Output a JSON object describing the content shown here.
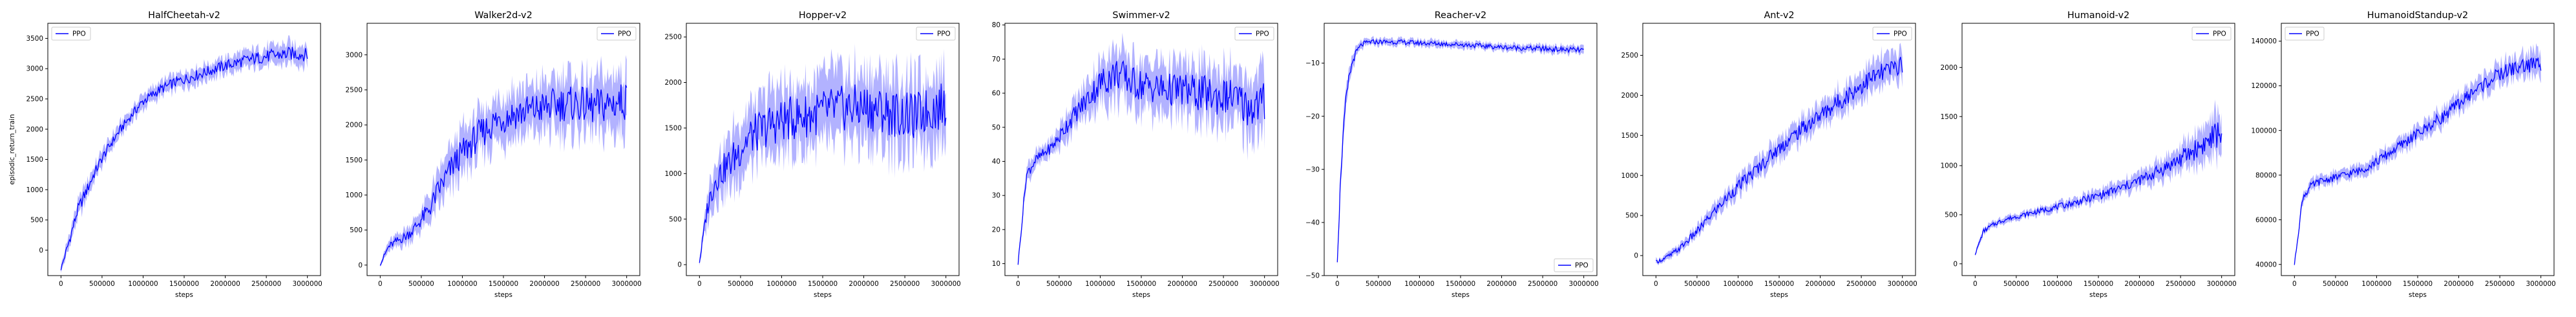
{
  "colors": {
    "line": "#0000ff",
    "band": "#0000ff",
    "axes": "#000000",
    "background": "#ffffff"
  },
  "chart_data": [
    {
      "type": "line",
      "title": "HalfCheetah-v2",
      "xlabel": "steps",
      "ylabel": "episodic_return_train",
      "xlim": [
        -160000,
        3160000
      ],
      "ylim": [
        -420,
        3750
      ],
      "xticks": [
        0,
        500000,
        1000000,
        1500000,
        2000000,
        2500000,
        3000000
      ],
      "xtick_labels": [
        "0",
        "500000",
        "1000000",
        "1500000",
        "2000000",
        "2500000",
        "3000000"
      ],
      "yticks": [
        0,
        500,
        1000,
        1500,
        2000,
        2500,
        3000,
        3500
      ],
      "ytick_labels": [
        "0",
        "500",
        "1000",
        "1500",
        "2000",
        "2500",
        "3000",
        "3500"
      ],
      "legend_position": "upper-left",
      "series": [
        {
          "name": "PPO",
          "x": [
            0,
            100000,
            200000,
            300000,
            400000,
            500000,
            600000,
            700000,
            800000,
            900000,
            1000000,
            1200000,
            1400000,
            1600000,
            1800000,
            2000000,
            2200000,
            2400000,
            2600000,
            2800000,
            3000000
          ],
          "y": [
            -310,
            150,
            650,
            950,
            1250,
            1520,
            1740,
            1950,
            2130,
            2300,
            2460,
            2650,
            2780,
            2870,
            2960,
            3050,
            3120,
            3180,
            3220,
            3250,
            3230
          ],
          "band": [
            60,
            150,
            180,
            180,
            160,
            150,
            140,
            140,
            140,
            140,
            150,
            150,
            160,
            160,
            160,
            170,
            180,
            190,
            200,
            210,
            200
          ]
        }
      ]
    },
    {
      "type": "line",
      "title": "Walker2d-v2",
      "xlabel": "steps",
      "xlim": [
        -160000,
        3160000
      ],
      "ylim": [
        -150,
        3450
      ],
      "xticks": [
        0,
        500000,
        1000000,
        1500000,
        2000000,
        2500000,
        3000000
      ],
      "xtick_labels": [
        "0",
        "500000",
        "1000000",
        "1500000",
        "2000000",
        "2500000",
        "3000000"
      ],
      "yticks": [
        0,
        500,
        1000,
        1500,
        2000,
        2500,
        3000
      ],
      "ytick_labels": [
        "0",
        "500",
        "1000",
        "1500",
        "2000",
        "2500",
        "3000"
      ],
      "legend_position": "upper-right",
      "series": [
        {
          "name": "PPO",
          "x": [
            0,
            100000,
            200000,
            300000,
            400000,
            500000,
            600000,
            700000,
            800000,
            900000,
            1000000,
            1200000,
            1400000,
            1600000,
            1800000,
            2000000,
            2200000,
            2400000,
            2600000,
            2800000,
            3000000
          ],
          "y": [
            10,
            260,
            340,
            400,
            500,
            650,
            800,
            1050,
            1250,
            1450,
            1600,
            1850,
            2050,
            2150,
            2200,
            2250,
            2300,
            2300,
            2250,
            2300,
            2350
          ],
          "band": [
            30,
            90,
            110,
            130,
            160,
            200,
            250,
            300,
            330,
            360,
            380,
            400,
            420,
            430,
            440,
            450,
            460,
            470,
            480,
            490,
            500
          ]
        }
      ]
    },
    {
      "type": "line",
      "title": "Hopper-v2",
      "xlabel": "steps",
      "xlim": [
        -160000,
        3160000
      ],
      "ylim": [
        -120,
        2650
      ],
      "xticks": [
        0,
        500000,
        1000000,
        1500000,
        2000000,
        2500000,
        3000000
      ],
      "xtick_labels": [
        "0",
        "500000",
        "1000000",
        "1500000",
        "2000000",
        "2500000",
        "3000000"
      ],
      "yticks": [
        0,
        500,
        1000,
        1500,
        2000,
        2500
      ],
      "ytick_labels": [
        "0",
        "500",
        "1000",
        "1500",
        "2000",
        "2500"
      ],
      "legend_position": "upper-right",
      "series": [
        {
          "name": "PPO",
          "x": [
            0,
            100000,
            200000,
            300000,
            400000,
            500000,
            600000,
            700000,
            800000,
            900000,
            1000000,
            1200000,
            1400000,
            1600000,
            1800000,
            2000000,
            2200000,
            2400000,
            2600000,
            2800000,
            3000000
          ],
          "y": [
            30,
            650,
            950,
            1050,
            1150,
            1280,
            1400,
            1450,
            1500,
            1550,
            1580,
            1620,
            1650,
            1700,
            1720,
            1730,
            1700,
            1650,
            1620,
            1700,
            1750
          ],
          "band": [
            40,
            200,
            280,
            320,
            360,
            380,
            400,
            400,
            420,
            430,
            440,
            450,
            450,
            460,
            460,
            470,
            470,
            470,
            470,
            470,
            480
          ]
        }
      ]
    },
    {
      "type": "line",
      "title": "Swimmer-v2",
      "xlabel": "steps",
      "xlim": [
        -160000,
        3160000
      ],
      "ylim": [
        6.5,
        80.5
      ],
      "xticks": [
        0,
        500000,
        1000000,
        1500000,
        2000000,
        2500000,
        3000000
      ],
      "xtick_labels": [
        "0",
        "500000",
        "1000000",
        "1500000",
        "2000000",
        "2500000",
        "3000000"
      ],
      "yticks": [
        10,
        20,
        30,
        40,
        50,
        60,
        70,
        80
      ],
      "ytick_labels": [
        "10",
        "20",
        "30",
        "40",
        "50",
        "60",
        "70",
        "80"
      ],
      "legend_position": "upper-right",
      "series": [
        {
          "name": "PPO",
          "x": [
            0,
            100000,
            200000,
            300000,
            400000,
            500000,
            600000,
            700000,
            800000,
            900000,
            1000000,
            1200000,
            1400000,
            1600000,
            1800000,
            2000000,
            2200000,
            2400000,
            2600000,
            2800000,
            3000000
          ],
          "y": [
            10,
            36,
            40,
            42,
            44,
            47,
            51,
            54,
            57,
            60,
            63,
            66,
            63,
            62,
            61,
            61,
            60,
            59,
            59,
            56,
            57
          ],
          "band": [
            1,
            3,
            3,
            3,
            3,
            4,
            5,
            5,
            6,
            7,
            8,
            9,
            9,
            9,
            9,
            9,
            10,
            10,
            10,
            11,
            12
          ]
        }
      ]
    },
    {
      "type": "line",
      "title": "Reacher-v2",
      "xlabel": "steps",
      "xlim": [
        -160000,
        3160000
      ],
      "ylim": [
        -50,
        -2.5
      ],
      "xticks": [
        0,
        500000,
        1000000,
        1500000,
        2000000,
        2500000,
        3000000
      ],
      "xtick_labels": [
        "0",
        "500000",
        "1000000",
        "1500000",
        "2000000",
        "2500000",
        "3000000"
      ],
      "yticks": [
        -50,
        -40,
        -30,
        -20,
        -10
      ],
      "ytick_labels": [
        "−50",
        "−40",
        "−30",
        "−20",
        "−10"
      ],
      "legend_position": "lower-right",
      "series": [
        {
          "name": "PPO",
          "x": [
            0,
            50000,
            100000,
            150000,
            200000,
            250000,
            300000,
            400000,
            500000,
            700000,
            1000000,
            1500000,
            2000000,
            2500000,
            3000000
          ],
          "y": [
            -47,
            -28,
            -18,
            -12,
            -9,
            -7.5,
            -6.5,
            -6,
            -6,
            -6,
            -6.2,
            -6.5,
            -7,
            -7.3,
            -7.6
          ],
          "band": [
            1,
            3,
            2.5,
            2,
            1.5,
            1.2,
            1,
            0.8,
            0.8,
            0.8,
            0.8,
            0.8,
            0.8,
            0.9,
            1
          ]
        }
      ]
    },
    {
      "type": "line",
      "title": "Ant-v2",
      "xlabel": "steps",
      "xlim": [
        -160000,
        3160000
      ],
      "ylim": [
        -250,
        2900
      ],
      "xticks": [
        0,
        500000,
        1000000,
        1500000,
        2000000,
        2500000,
        3000000
      ],
      "xtick_labels": [
        "0",
        "500000",
        "1000000",
        "1500000",
        "2000000",
        "2500000",
        "3000000"
      ],
      "yticks": [
        0,
        500,
        1000,
        1500,
        2000,
        2500
      ],
      "ytick_labels": [
        "0",
        "500",
        "1000",
        "1500",
        "2000",
        "2500"
      ],
      "legend_position": "upper-right",
      "series": [
        {
          "name": "PPO",
          "x": [
            0,
            100000,
            200000,
            300000,
            400000,
            500000,
            600000,
            700000,
            800000,
            900000,
            1000000,
            1200000,
            1400000,
            1600000,
            1800000,
            2000000,
            2200000,
            2400000,
            2600000,
            2800000,
            3000000
          ],
          "y": [
            -80,
            -40,
            20,
            100,
            200,
            300,
            420,
            540,
            650,
            760,
            860,
            1050,
            1250,
            1430,
            1600,
            1750,
            1900,
            2050,
            2200,
            2300,
            2400
          ],
          "band": [
            40,
            50,
            60,
            70,
            80,
            90,
            100,
            110,
            120,
            130,
            140,
            150,
            160,
            170,
            180,
            190,
            200,
            210,
            220,
            230,
            240
          ]
        }
      ]
    },
    {
      "type": "line",
      "title": "Humanoid-v2",
      "xlabel": "steps",
      "xlim": [
        -160000,
        3160000
      ],
      "ylim": [
        -120,
        2450
      ],
      "xticks": [
        0,
        500000,
        1000000,
        1500000,
        2000000,
        2500000,
        3000000
      ],
      "xtick_labels": [
        "0",
        "500000",
        "1000000",
        "1500000",
        "2000000",
        "2500000",
        "3000000"
      ],
      "yticks": [
        0,
        500,
        1000,
        1500,
        2000
      ],
      "ytick_labels": [
        "0",
        "500",
        "1000",
        "1500",
        "2000"
      ],
      "legend_position": "upper-right",
      "series": [
        {
          "name": "PPO",
          "x": [
            0,
            100000,
            200000,
            300000,
            400000,
            500000,
            600000,
            700000,
            800000,
            900000,
            1000000,
            1200000,
            1400000,
            1600000,
            1800000,
            2000000,
            2200000,
            2400000,
            2600000,
            2800000,
            3000000
          ],
          "y": [
            100,
            330,
            390,
            430,
            460,
            480,
            500,
            520,
            540,
            560,
            580,
            620,
            670,
            720,
            780,
            850,
            930,
            1020,
            1120,
            1230,
            1350
          ],
          "band": [
            20,
            40,
            40,
            40,
            40,
            40,
            45,
            45,
            50,
            50,
            55,
            60,
            70,
            80,
            90,
            100,
            120,
            150,
            180,
            220,
            280
          ]
        }
      ]
    },
    {
      "type": "line",
      "title": "HumanoidStandup-v2",
      "xlabel": "steps",
      "xlim": [
        -160000,
        3160000
      ],
      "ylim": [
        35000,
        148000
      ],
      "xticks": [
        0,
        500000,
        1000000,
        1500000,
        2000000,
        2500000,
        3000000
      ],
      "xtick_labels": [
        "0",
        "500000",
        "1000000",
        "1500000",
        "2000000",
        "2500000",
        "3000000"
      ],
      "yticks": [
        40000,
        60000,
        80000,
        100000,
        120000,
        140000
      ],
      "ytick_labels": [
        "40000",
        "60000",
        "80000",
        "100000",
        "120000",
        "140000"
      ],
      "legend_position": "upper-left",
      "series": [
        {
          "name": "PPO",
          "x": [
            0,
            100000,
            200000,
            300000,
            400000,
            500000,
            600000,
            700000,
            800000,
            900000,
            1000000,
            1200000,
            1400000,
            1600000,
            1800000,
            2000000,
            2200000,
            2400000,
            2600000,
            2800000,
            3000000
          ],
          "y": [
            40000,
            70000,
            75000,
            77000,
            78000,
            79000,
            80000,
            81000,
            82000,
            84000,
            86000,
            91000,
            96000,
            101000,
            106000,
            112000,
            118000,
            123000,
            127000,
            129000,
            130000
          ],
          "band": [
            1000,
            3000,
            3000,
            3000,
            3000,
            3000,
            3000,
            3500,
            3500,
            3500,
            4000,
            4000,
            4500,
            4500,
            5000,
            5000,
            5500,
            6000,
            6000,
            6500,
            7000
          ]
        }
      ]
    }
  ]
}
